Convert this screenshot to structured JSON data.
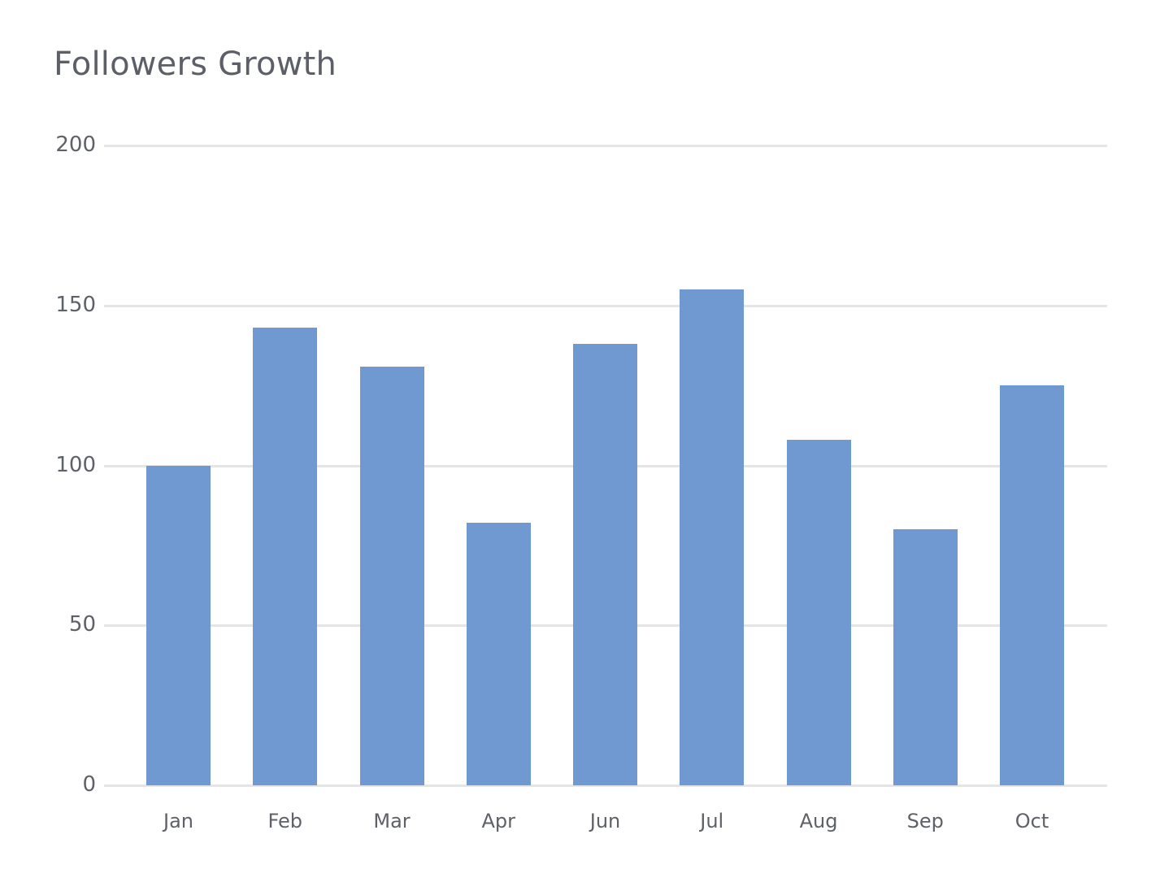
{
  "header": {
    "title": "Followers Growth"
  },
  "colors": {
    "bar": "#7099d1",
    "grid": "#e5e5e7",
    "text": "#5f6168"
  },
  "chart_data": {
    "type": "bar",
    "title": "Followers Growth",
    "xlabel": "",
    "ylabel": "",
    "categories": [
      "Jan",
      "Feb",
      "Mar",
      "Apr",
      "Jun",
      "Jul",
      "Aug",
      "Sep",
      "Oct"
    ],
    "values": [
      100,
      143,
      131,
      82,
      138,
      155,
      108,
      80,
      125
    ],
    "ylim": [
      0,
      200
    ],
    "yticks": [
      "0",
      "50",
      "100",
      "150",
      "200"
    ],
    "grid": true,
    "legend": null
  }
}
